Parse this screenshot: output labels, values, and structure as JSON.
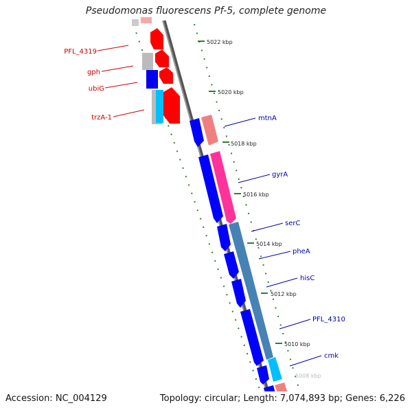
{
  "title": "Pseudomonas fluorescens Pf-5, complete genome",
  "footer": {
    "accession": "Accession: NC_004129",
    "summary": "Topology: circular; Length: 7,074,893 bp; Genes: 6,226"
  },
  "colors": {
    "backbone": "#8c8c8c",
    "tick": "#2e7d32",
    "reverse_label": "#cc0000",
    "forward_label": "#0000aa",
    "red": "#ff0000",
    "salmon": "#f08080",
    "pink": "#ff3399",
    "blue": "#0000ff",
    "steel": "#4682b4",
    "cyan": "#00bfff",
    "grey": "#bbbbbb"
  },
  "scale_labels": [
    "5022 kbp",
    "5020 kbp",
    "5018 kbp",
    "5016 kbp",
    "5014 kbp",
    "5012 kbp",
    "5010 kbp",
    "5008 kbp"
  ],
  "reverse_genes": [
    "PFL_4319",
    "gph",
    "ubiG",
    "trzA-1"
  ],
  "forward_genes": [
    "mtnA",
    "gyrA",
    "serC",
    "pheA",
    "hisC",
    "PFL_4310",
    "cmk"
  ]
}
